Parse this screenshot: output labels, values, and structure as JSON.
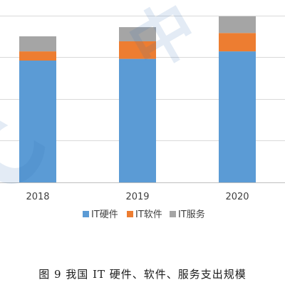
{
  "chart_data": {
    "type": "bar",
    "stacked": true,
    "categories": [
      "2018",
      "2019",
      "2020"
    ],
    "series": [
      {
        "name": "IT硬件",
        "color": "#5b9bd5",
        "values": [
          146,
          148,
          157
        ]
      },
      {
        "name": "IT软件",
        "color": "#ed7d31",
        "values": [
          11,
          21,
          22
        ]
      },
      {
        "name": "IT服务",
        "color": "#a5a5a5",
        "values": [
          18,
          17,
          20
        ]
      }
    ],
    "ylim": [
      0,
      210
    ],
    "gridlines": [
      0,
      50,
      100,
      150,
      200
    ],
    "grid": true,
    "legend_position": "bottom"
  },
  "caption": "图 9  我国 IT 硬件、软件、服务支出规模",
  "watermark": "中国信通院 CAICT"
}
